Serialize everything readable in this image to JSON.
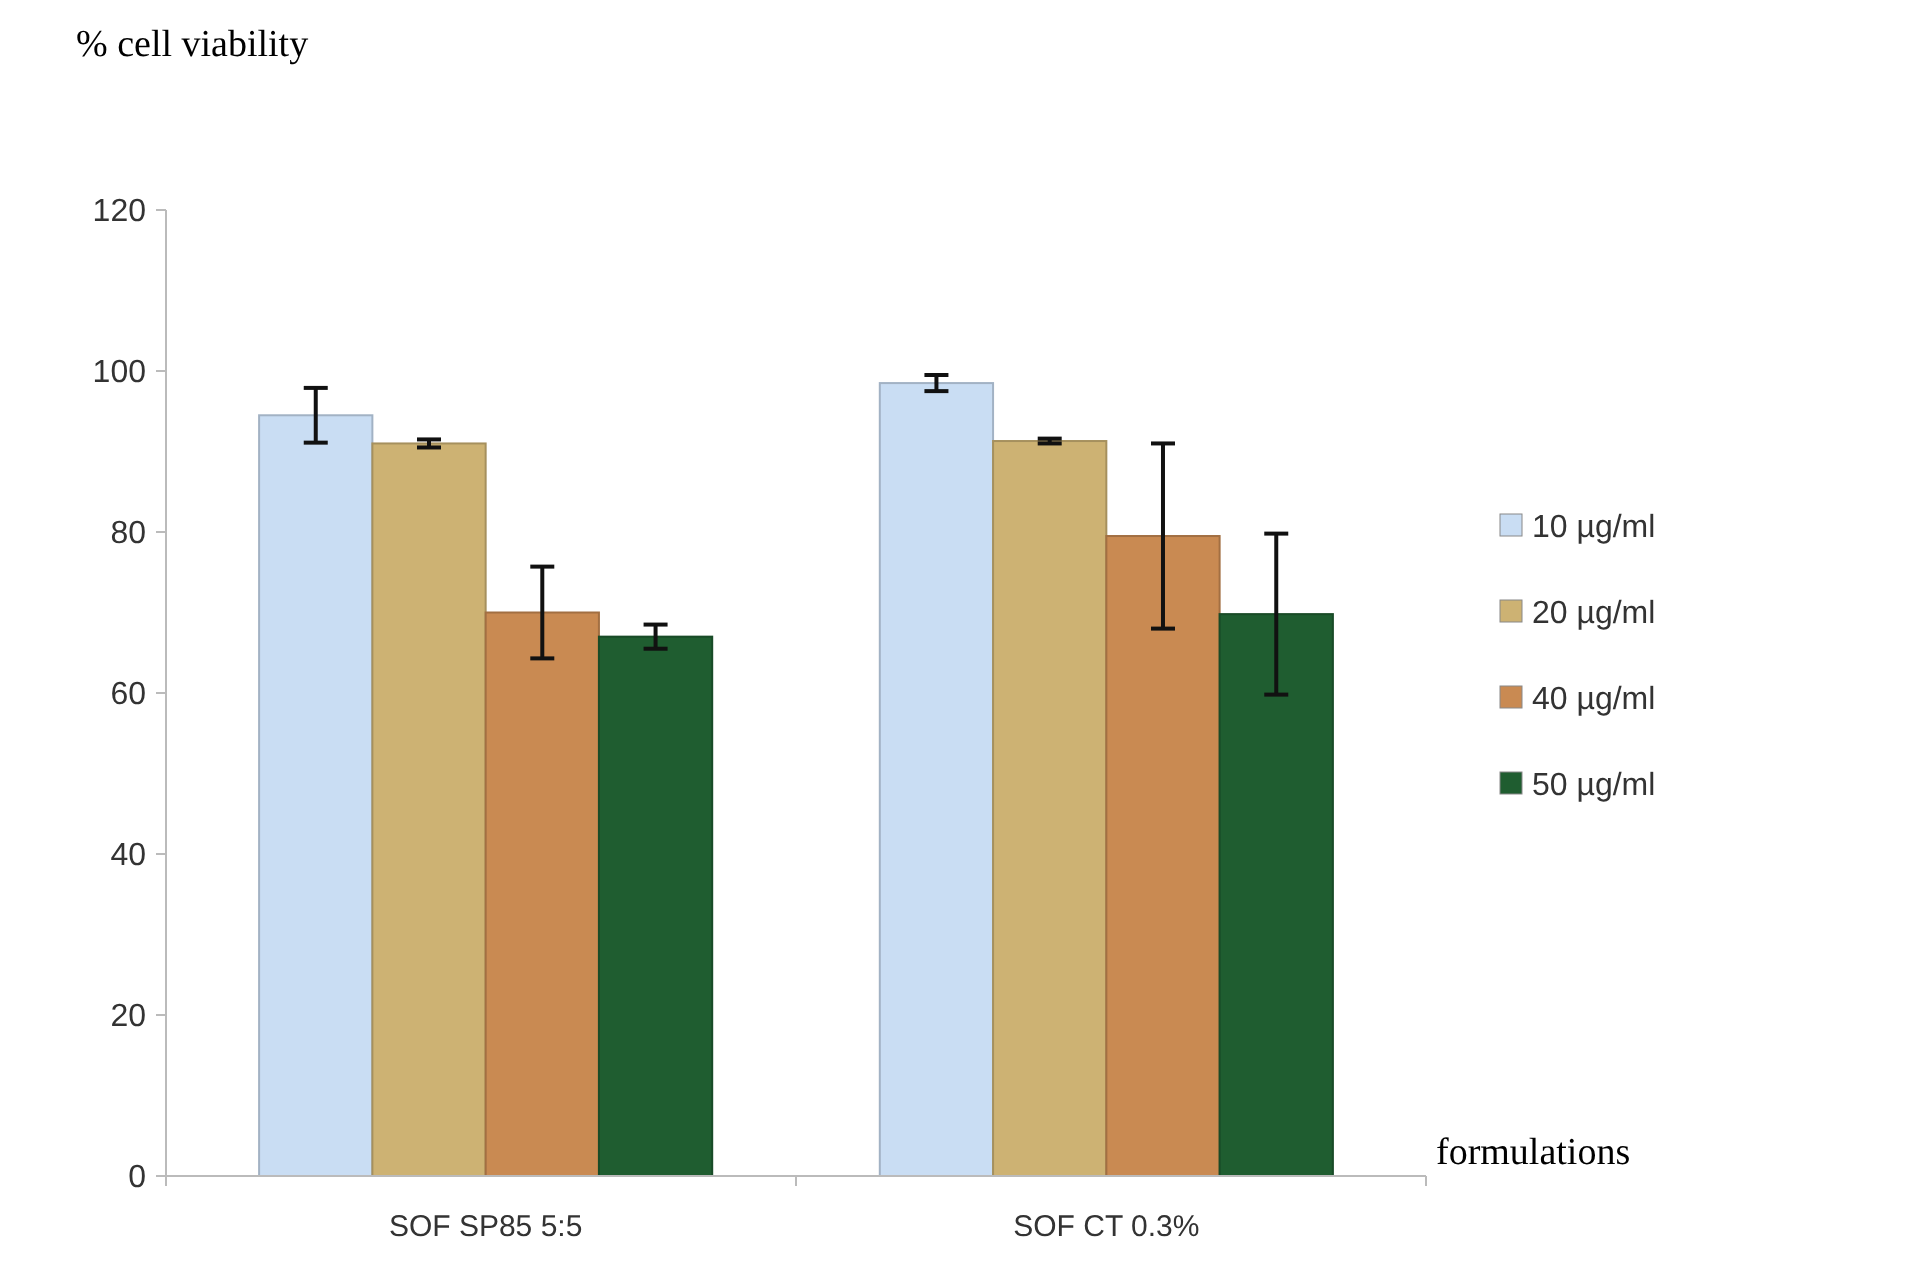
{
  "chart_data": {
    "type": "bar",
    "ylabel": "% cell viability",
    "xlabel": "formulations",
    "categories": [
      "SOF SP85 5:5",
      "SOF CT 0.3%"
    ],
    "series": [
      {
        "name": "10 µg/ml",
        "color": "#c9ddf3",
        "values": [
          94.5,
          98.5
        ],
        "errors": [
          3.4,
          1
        ]
      },
      {
        "name": "20 µg/ml",
        "color": "#cdb273",
        "values": [
          91,
          91.3
        ],
        "errors": [
          0.5,
          0.3
        ]
      },
      {
        "name": "40 µg/ml",
        "color": "#c98a52",
        "values": [
          70,
          79.5
        ],
        "errors": [
          5.7,
          11.5
        ]
      },
      {
        "name": "50 µg/ml",
        "color": "#1f5d30",
        "values": [
          67,
          69.8
        ],
        "errors": [
          1.5,
          10
        ]
      }
    ],
    "ylim": [
      0,
      120
    ],
    "yticks": [
      0,
      20,
      40,
      60,
      80,
      100,
      120
    ],
    "grid": false,
    "legend": "right"
  }
}
